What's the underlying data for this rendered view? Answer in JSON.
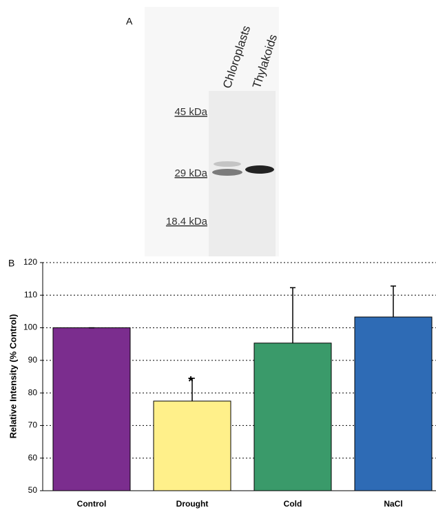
{
  "panel_a": {
    "label": "A",
    "lanes": [
      "Chloroplasts",
      "Thylakoids"
    ],
    "markers": [
      "45 kDa",
      "29 kDa",
      "18.4 kDa"
    ]
  },
  "chart_data": {
    "type": "bar",
    "label": "B",
    "y_label": "Relative Intensity (% Control)",
    "categories": [
      "Control",
      "Drought",
      "Cold",
      "NaCl"
    ],
    "values": [
      100,
      77.5,
      95.3,
      103.3
    ],
    "errors": [
      0,
      7,
      17,
      9.5
    ],
    "colors": [
      "#7b2d8e",
      "#fff08a",
      "#3a9a6a",
      "#2e6bb5"
    ],
    "annotations": [
      {
        "category": 1,
        "text": "*"
      }
    ],
    "ylim": [
      50,
      120
    ],
    "yticks": [
      50,
      60,
      70,
      80,
      90,
      100,
      110,
      120
    ],
    "grid": true
  }
}
